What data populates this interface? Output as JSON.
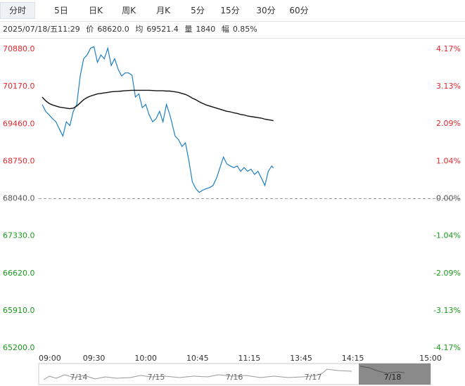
{
  "tabs": [
    "分时",
    "5日",
    "日K",
    "周K",
    "月K",
    "5分",
    "15分",
    "30分",
    "60分"
  ],
  "active_tab": 0,
  "info": {
    "datetime": "2025/07/18/五11:29",
    "price_label": "价",
    "price": "68620.0",
    "avg_label": "均",
    "avg": "69521.4",
    "volume_label": "量",
    "volume": "1840",
    "change_label": "幅",
    "change": "0.85%"
  },
  "chart_data": {
    "type": "line",
    "x": [
      "09:00",
      "09:02",
      "09:04",
      "09:06",
      "09:08",
      "09:10",
      "09:12",
      "09:14",
      "09:16",
      "09:18",
      "09:20",
      "09:22",
      "09:24",
      "09:26",
      "09:28",
      "09:30",
      "09:32",
      "09:34",
      "09:36",
      "09:38",
      "09:40",
      "09:42",
      "09:44",
      "09:46",
      "09:48",
      "09:50",
      "09:52",
      "09:54",
      "09:56",
      "09:58",
      "10:00",
      "10:02",
      "10:04",
      "10:06",
      "10:08",
      "10:10",
      "10:12",
      "10:14",
      "10:30",
      "10:32",
      "10:34",
      "10:36",
      "10:38",
      "10:40",
      "10:42",
      "10:44",
      "10:46",
      "10:48",
      "10:50",
      "10:52",
      "10:54",
      "10:56",
      "10:58",
      "11:00",
      "11:02",
      "11:04",
      "11:06",
      "11:08",
      "11:10",
      "11:12",
      "11:14",
      "11:16",
      "11:18",
      "11:20",
      "11:22",
      "11:24",
      "11:26",
      "11:28",
      "11:29"
    ],
    "series": [
      {
        "color": "#1f7fc0",
        "values": [
          69830,
          69700,
          69630,
          69560,
          69500,
          69360,
          69230,
          69500,
          69430,
          69700,
          69830,
          70370,
          70700,
          70770,
          70900,
          70930,
          70630,
          70770,
          70700,
          70900,
          70570,
          70700,
          70500,
          70370,
          70430,
          70430,
          70390,
          69970,
          70030,
          69770,
          69830,
          69630,
          69500,
          69560,
          69700,
          69500,
          69830,
          69630,
          69500,
          69230,
          69160,
          69030,
          69100,
          68760,
          68360,
          68230,
          68160,
          68200,
          68230,
          68250,
          68290,
          68430,
          68630,
          68830,
          68700,
          68660,
          68630,
          68660,
          68560,
          68630,
          68560,
          68600,
          68500,
          68560,
          68430,
          68290,
          68560,
          68660,
          68620
        ]
      },
      {
        "color": "#111111",
        "values": [
          69970,
          69900,
          69850,
          69820,
          69800,
          69780,
          69770,
          69760,
          69750,
          69760,
          69800,
          69860,
          69920,
          69960,
          69990,
          70010,
          70030,
          70040,
          70050,
          70060,
          70070,
          70075,
          70080,
          70085,
          70090,
          70095,
          70100,
          70100,
          70100,
          70100,
          70100,
          70100,
          70095,
          70090,
          70090,
          70090,
          70085,
          70085,
          70080,
          70070,
          70060,
          70040,
          70020,
          69990,
          69950,
          69920,
          69880,
          69850,
          69820,
          69800,
          69780,
          69760,
          69740,
          69720,
          69700,
          69690,
          69670,
          69660,
          69640,
          69630,
          69610,
          69600,
          69590,
          69580,
          69570,
          69550,
          69540,
          69530,
          69521.4
        ]
      }
    ],
    "xticks": [
      "09:00",
      "09:30",
      "10:00",
      "10:45",
      "11:15",
      "13:45",
      "14:15",
      "15:00"
    ],
    "ylim": [
      65200,
      70880
    ],
    "yticks": [
      {
        "value": 70880,
        "label": "70880.0"
      },
      {
        "value": 70170,
        "label": "70170.0"
      },
      {
        "value": 69460,
        "label": "69460.0"
      },
      {
        "value": 68750,
        "label": "68750.0"
      },
      {
        "value": 68040,
        "label": "68040.0"
      },
      {
        "value": 67330,
        "label": "67330.0"
      },
      {
        "value": 66620,
        "label": "66620.0"
      },
      {
        "value": 65910,
        "label": "65910.0"
      },
      {
        "value": 65200,
        "label": "65200.0"
      }
    ],
    "y2lim": [
      -4.17,
      4.17
    ],
    "y2ticks": [
      {
        "value": 4.17,
        "label": "4.17%"
      },
      {
        "value": 3.13,
        "label": "3.13%"
      },
      {
        "value": 2.09,
        "label": "2.09%"
      },
      {
        "value": 1.04,
        "label": "1.04%"
      },
      {
        "value": 0,
        "label": "0.00%"
      },
      {
        "value": -1.04,
        "label": "-1.04%"
      },
      {
        "value": -2.09,
        "label": "-2.09%"
      },
      {
        "value": -3.13,
        "label": "-3.13%"
      },
      {
        "value": -4.17,
        "label": "-4.17%"
      }
    ],
    "up_color": "#e8262d",
    "down_color": "#1a9a1a",
    "flat_color": "#555555"
  },
  "navigator": {
    "dates": [
      "7/14",
      "7/15",
      "7/16",
      "7/17",
      "7/18"
    ],
    "selected": 4
  }
}
